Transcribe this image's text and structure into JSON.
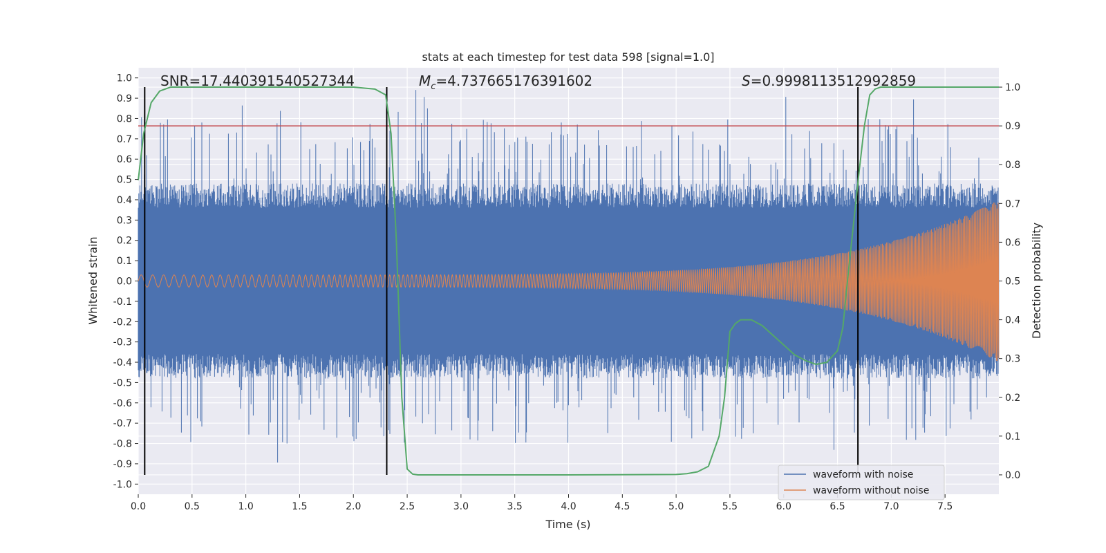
{
  "chart_data": {
    "type": "line",
    "title": "stats at each timestep for test data 598 [signal=1.0]",
    "xlabel": "Time (s)",
    "ylabel_left": "Whitened strain",
    "ylabel_right": "Detection probability",
    "xlim": [
      0,
      8
    ],
    "ylim_left": [
      -1.05,
      1.05
    ],
    "ylim_right": [
      -0.05,
      1.05
    ],
    "x_ticks": [
      "0.0",
      "0.5",
      "1.0",
      "1.5",
      "2.0",
      "2.5",
      "3.0",
      "3.5",
      "4.0",
      "4.5",
      "5.0",
      "5.5",
      "6.0",
      "6.5",
      "7.0",
      "7.5"
    ],
    "y_ticks_left": [
      "1.0",
      "0.9",
      "0.8",
      "0.7",
      "0.6",
      "0.5",
      "0.4",
      "0.3",
      "0.2",
      "0.1",
      "0.0",
      "-0.1",
      "-0.2",
      "-0.3",
      "-0.4",
      "-0.5",
      "-0.6",
      "-0.7",
      "-0.8",
      "-0.9",
      "-1.0"
    ],
    "y_ticks_right": [
      "1.0",
      "0.9",
      "0.8",
      "0.7",
      "0.6",
      "0.5",
      "0.4",
      "0.3",
      "0.2",
      "0.1",
      "0.0"
    ],
    "annotations": {
      "snr": "SNR=17.440391540527344",
      "mc_symbol": "M",
      "mc_sub": "c",
      "mc_value": "=4.737665176391602",
      "s_symbol": "S",
      "s_value": "=0.9998113512992859"
    },
    "threshold_right": 0.9,
    "vertical_lines_s": [
      0.06,
      2.31,
      6.69
    ],
    "series": [
      {
        "name": "waveform with noise",
        "color": "#4c72b0",
        "description_envelope": "dense noisy strain, roughly -0.9 to 0.95"
      },
      {
        "name": "waveform without noise",
        "color": "#dd8452",
        "amplitude_start": 0.03,
        "amplitude_end": 0.4
      },
      {
        "name": "detection probability",
        "color": "#55a868",
        "axis": "right",
        "x": [
          0.0,
          0.05,
          0.12,
          0.2,
          0.3,
          0.5,
          1.0,
          1.5,
          2.0,
          2.2,
          2.3,
          2.35,
          2.4,
          2.45,
          2.5,
          2.55,
          2.6,
          3.0,
          4.0,
          5.0,
          5.1,
          5.2,
          5.3,
          5.4,
          5.45,
          5.5,
          5.55,
          5.6,
          5.7,
          5.8,
          5.9,
          6.0,
          6.1,
          6.2,
          6.3,
          6.4,
          6.5,
          6.55,
          6.6,
          6.65,
          6.7,
          6.75,
          6.8,
          6.85,
          6.9,
          7.0,
          7.5,
          8.0
        ],
        "y": [
          0.76,
          0.88,
          0.96,
          0.99,
          1.0,
          1.0,
          1.0,
          1.0,
          1.0,
          0.995,
          0.98,
          0.88,
          0.6,
          0.2,
          0.015,
          0.002,
          0.0,
          0.0,
          0.0,
          0.001,
          0.003,
          0.008,
          0.022,
          0.1,
          0.2,
          0.37,
          0.39,
          0.4,
          0.4,
          0.385,
          0.36,
          0.335,
          0.31,
          0.295,
          0.285,
          0.29,
          0.32,
          0.38,
          0.52,
          0.65,
          0.78,
          0.9,
          0.98,
          0.995,
          1.0,
          1.0,
          1.0,
          1.0
        ]
      }
    ],
    "legend": {
      "placement": "bottom-right",
      "entries": [
        {
          "label": "waveform with noise",
          "color": "#4c72b0"
        },
        {
          "label": "waveform without noise",
          "color": "#dd8452"
        }
      ]
    },
    "colors": {
      "plot_bg": "#eaeaf2",
      "grid": "#ffffff",
      "threshold": "#c44e52",
      "vline": "#000000"
    }
  }
}
